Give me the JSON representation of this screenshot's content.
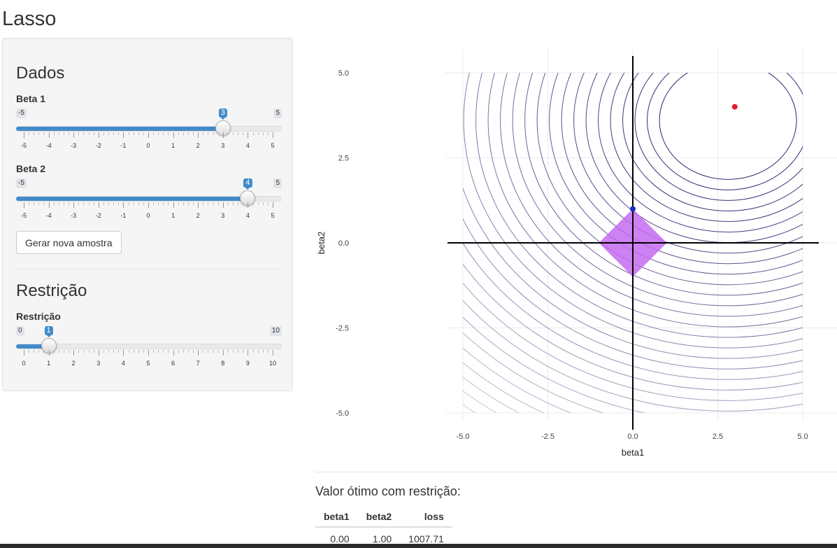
{
  "app": {
    "title": "Lasso"
  },
  "sidebar": {
    "dados": {
      "heading": "Dados",
      "beta1": {
        "label": "Beta 1",
        "min": -5,
        "max": 5,
        "value": 3,
        "min_label": "-5",
        "max_label": "5",
        "value_label": "3"
      },
      "beta2": {
        "label": "Beta 2",
        "min": -5,
        "max": 5,
        "value": 4,
        "min_label": "-5",
        "max_label": "5",
        "value_label": "4"
      },
      "button_label": "Gerar nova amostra"
    },
    "restricao": {
      "heading": "Restrição",
      "slider": {
        "label": "Restrição",
        "min": 0,
        "max": 10,
        "value": 1,
        "min_label": "0",
        "max_label": "10",
        "value_label": "1"
      }
    },
    "ticks_beta": [
      "-5",
      "-4",
      "-3",
      "-2",
      "-1",
      "0",
      "1",
      "2",
      "3",
      "4",
      "5"
    ],
    "ticks_restr": [
      "0",
      "1",
      "2",
      "3",
      "4",
      "5",
      "6",
      "7",
      "8",
      "9",
      "10"
    ]
  },
  "chart_data": {
    "type": "scatter",
    "xlabel": "beta1",
    "ylabel": "beta2",
    "xlim": [
      -5.5,
      5.5
    ],
    "ylim": [
      -5.5,
      5.5
    ],
    "xticks": [
      "-5.0",
      "-2.5",
      "0.0",
      "2.5",
      "5.0"
    ],
    "yticks": [
      "5.0",
      "2.5",
      "0.0",
      "-2.5",
      "-5.0"
    ],
    "points": [
      {
        "name": "unconstrained",
        "x": 3.0,
        "y": 4.0,
        "color": "#e8182e"
      },
      {
        "name": "constrained",
        "x": 0.0,
        "y": 1.0,
        "color": "#1a2fb5"
      }
    ],
    "constraint_region": {
      "shape": "l1-diamond",
      "radius": 1,
      "color": "#c46bf0"
    },
    "contour_center": {
      "x": 2.8,
      "y": 3.6
    },
    "contour_color_near": "#3b1f6e",
    "contour_color_far": "#d8d4e4",
    "grid": true
  },
  "results": {
    "title": "Valor ótimo com restrição:",
    "columns": [
      "beta1",
      "beta2",
      "loss"
    ],
    "rows": [
      [
        "0.00",
        "1.00",
        "1007.71"
      ]
    ]
  }
}
